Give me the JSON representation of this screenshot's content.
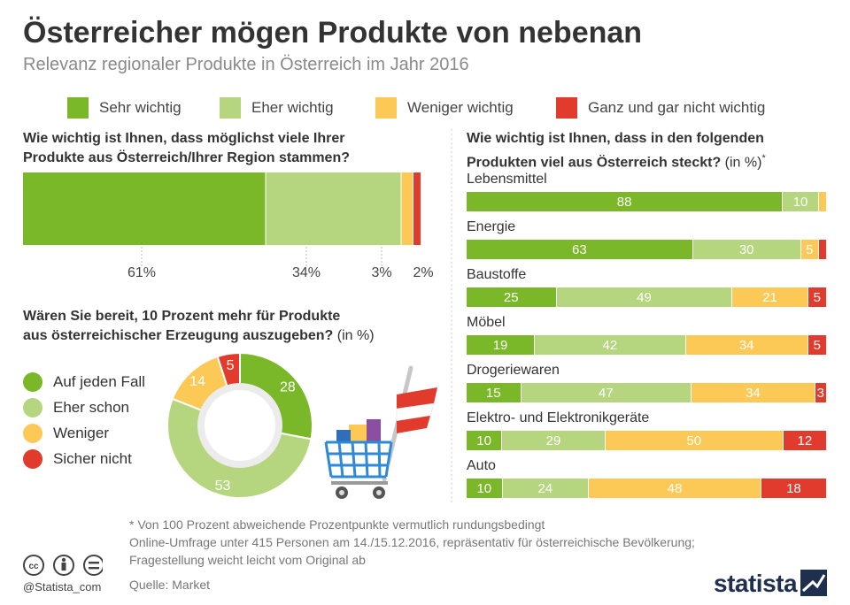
{
  "header": {
    "title": "Österreicher mögen Produkte von nebenan",
    "subtitle": "Relevanz regionaler Produkte in Österreich im Jahr 2016"
  },
  "legend": [
    {
      "label": "Sehr wichtig",
      "color": "#7ab829"
    },
    {
      "label": "Eher wichtig",
      "color": "#b5d67f"
    },
    {
      "label": "Weniger wichtig",
      "color": "#fcc957"
    },
    {
      "label": "Ganz und gar nicht wichtig",
      "color": "#e03b2c"
    }
  ],
  "q1": {
    "line1": "Wie wichtig ist Ihnen, dass möglichst viele Ihrer",
    "line2": "Produkte aus Österreich/Ihrer Region stammen?",
    "labels": [
      "61%",
      "34%",
      "3%",
      "2%"
    ]
  },
  "q2": {
    "line1": "Wären Sie bereit, 10 Prozent mehr für Produkte",
    "line2": "aus österreichischer Erzeugung auszugeben?",
    "line2_suffix": " (in %)",
    "legend": [
      {
        "label": "Auf jeden Fall",
        "color": "#7ab829"
      },
      {
        "label": "Eher schon",
        "color": "#b5d67f"
      },
      {
        "label": "Weniger",
        "color": "#fcc957"
      },
      {
        "label": "Sicher nicht",
        "color": "#e03b2c"
      }
    ]
  },
  "q3": {
    "line1": "Wie wichtig ist Ihnen, dass in den folgenden",
    "line2": "Produkten viel aus Österreich steckt?",
    "line2_suffix": " (in %)",
    "asterisk": "*"
  },
  "footer": {
    "note": "* Von 100 Prozent abweichende Prozentpunkte vermutlich rundungsbedingt",
    "survey_line1": "Online-Umfrage unter 415 Personen am 14./15.12.2016, repräsentativ für österreichische Bevölkerung;",
    "survey_line2": "Fragestellung weicht leicht vom Original ab",
    "source": "Quelle: Market",
    "handle": "@Statista_com",
    "brand": "statista"
  },
  "chart_data": [
    {
      "type": "bar",
      "title": "Wie wichtig ist Ihnen, dass möglichst viele Ihrer Produkte aus Österreich/Ihrer Region stammen?",
      "stacked": true,
      "orientation": "horizontal",
      "series": [
        {
          "name": "Sehr wichtig",
          "values": [
            61
          ]
        },
        {
          "name": "Eher wichtig",
          "values": [
            34
          ]
        },
        {
          "name": "Weniger wichtig",
          "values": [
            3
          ]
        },
        {
          "name": "Ganz und gar nicht wichtig",
          "values": [
            2
          ]
        }
      ],
      "unit": "%"
    },
    {
      "type": "pie",
      "title": "Wären Sie bereit, 10 Prozent mehr für Produkte aus österreichischer Erzeugung auszugeben? (in %)",
      "donut": true,
      "categories": [
        "Auf jeden Fall",
        "Eher schon",
        "Weniger",
        "Sicher nicht"
      ],
      "values": [
        28,
        53,
        14,
        5
      ],
      "colors": [
        "#7ab829",
        "#b5d67f",
        "#fcc957",
        "#e03b2c"
      ]
    },
    {
      "type": "bar",
      "title": "Wie wichtig ist Ihnen, dass in den folgenden Produkten viel aus Österreich steckt? (in %)*",
      "stacked": true,
      "orientation": "horizontal",
      "categories": [
        "Lebensmittel",
        "Energie",
        "Baustoffe",
        "Möbel",
        "Drogeriewaren",
        "Elektro- und Elektronikgeräte",
        "Auto"
      ],
      "series": [
        {
          "name": "Sehr wichtig",
          "values": [
            88,
            63,
            25,
            19,
            15,
            10,
            10
          ]
        },
        {
          "name": "Eher wichtig",
          "values": [
            10,
            30,
            49,
            42,
            47,
            29,
            24
          ]
        },
        {
          "name": "Weniger wichtig",
          "values": [
            2,
            5,
            21,
            34,
            34,
            50,
            48
          ]
        },
        {
          "name": "Ganz und gar nicht wichtig",
          "values": [
            0,
            2,
            5,
            5,
            3,
            12,
            18
          ]
        }
      ],
      "labels": [
        [
          "88",
          "10",
          "",
          ""
        ],
        [
          "63",
          "30",
          "5",
          ""
        ],
        [
          "25",
          "49",
          "21",
          "5"
        ],
        [
          "19",
          "42",
          "34",
          "5"
        ],
        [
          "15",
          "47",
          "34",
          "3"
        ],
        [
          "10",
          "29",
          "50",
          "12"
        ],
        [
          "10",
          "24",
          "48",
          "18"
        ]
      ],
      "colors": [
        "#7ab829",
        "#b5d67f",
        "#fcc957",
        "#e03b2c"
      ]
    }
  ]
}
